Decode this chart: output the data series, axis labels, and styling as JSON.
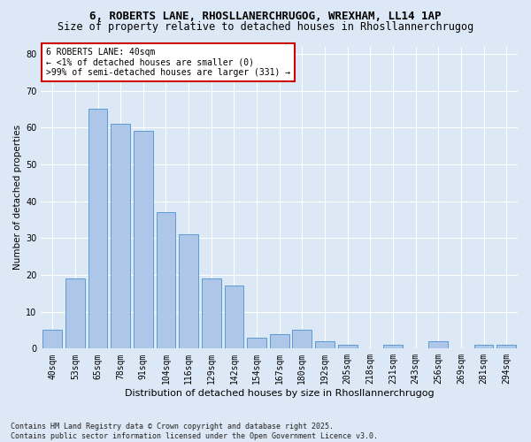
{
  "title": "6, ROBERTS LANE, RHOSLLANERCHRUGOG, WREXHAM, LL14 1AP",
  "subtitle": "Size of property relative to detached houses in Rhosllannerchrugog",
  "xlabel": "Distribution of detached houses by size in Rhosllannerchrugog",
  "ylabel": "Number of detached properties",
  "categories": [
    "40sqm",
    "53sqm",
    "65sqm",
    "78sqm",
    "91sqm",
    "104sqm",
    "116sqm",
    "129sqm",
    "142sqm",
    "154sqm",
    "167sqm",
    "180sqm",
    "192sqm",
    "205sqm",
    "218sqm",
    "231sqm",
    "243sqm",
    "256sqm",
    "269sqm",
    "281sqm",
    "294sqm"
  ],
  "values": [
    5,
    19,
    65,
    61,
    59,
    37,
    31,
    19,
    17,
    3,
    4,
    5,
    2,
    1,
    0,
    1,
    0,
    2,
    0,
    1,
    1
  ],
  "bar_color": "#aec6e8",
  "bar_edge_color": "#5b9bd5",
  "annotation_text": "6 ROBERTS LANE: 40sqm\n← <1% of detached houses are smaller (0)\n>99% of semi-detached houses are larger (331) →",
  "annotation_box_color": "#ffffff",
  "annotation_box_edge_color": "#cc0000",
  "ylim": [
    0,
    82
  ],
  "yticks": [
    0,
    10,
    20,
    30,
    40,
    50,
    60,
    70,
    80
  ],
  "footer": "Contains HM Land Registry data © Crown copyright and database right 2025.\nContains public sector information licensed under the Open Government Licence v3.0.",
  "bg_color": "#dce8f5",
  "plot_bg_color": "#dce8f5",
  "grid_color": "#ffffff",
  "title_fontsize": 9,
  "subtitle_fontsize": 8.5,
  "xlabel_fontsize": 8,
  "ylabel_fontsize": 7.5,
  "tick_fontsize": 7,
  "annotation_fontsize": 7,
  "footer_fontsize": 6
}
